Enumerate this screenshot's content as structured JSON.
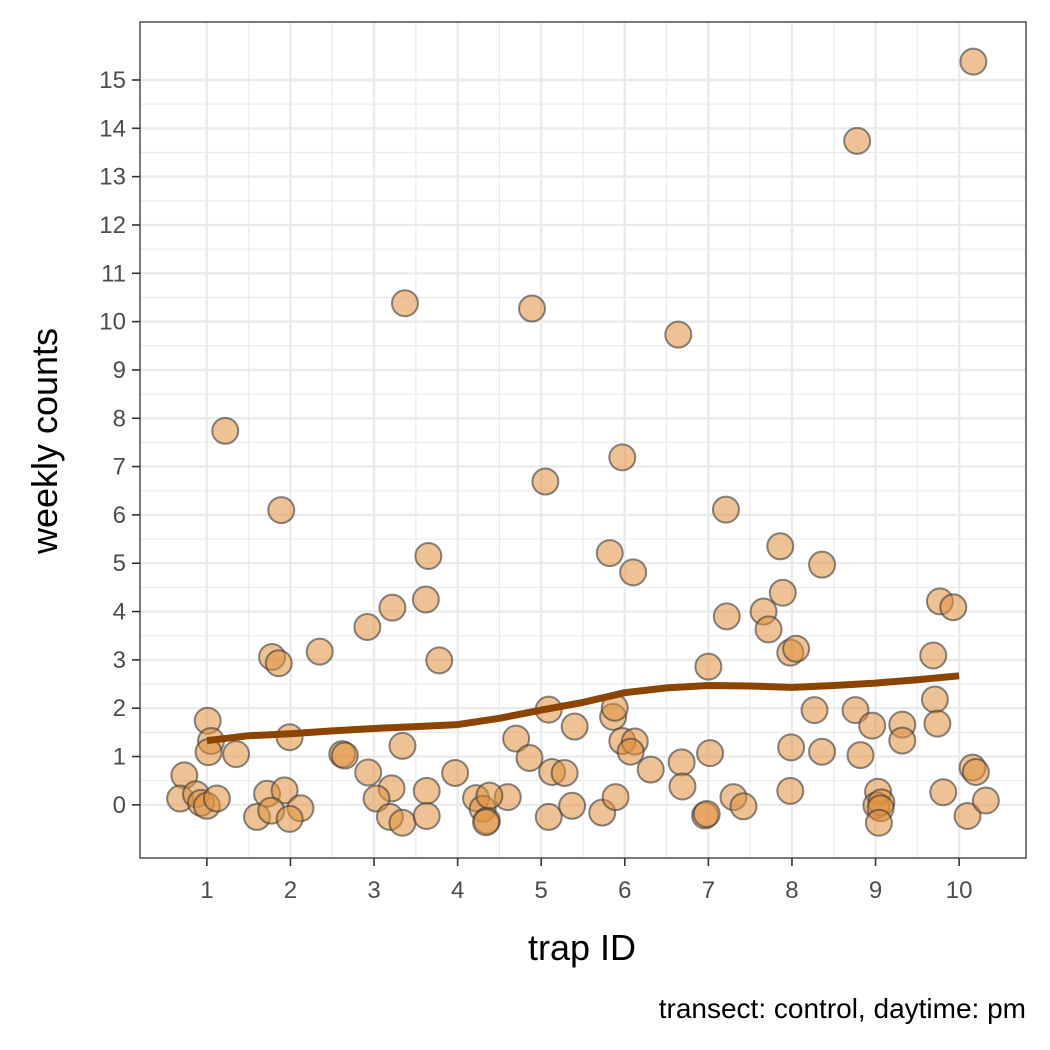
{
  "chart_data": {
    "type": "scatter",
    "xlabel": "trap ID",
    "ylabel": "weekly counts",
    "caption": "transect: control, daytime: pm",
    "xlim": [
      0.2,
      10.8
    ],
    "ylim": [
      -1.1,
      16.2
    ],
    "xticks": [
      1,
      2,
      3,
      4,
      5,
      6,
      7,
      8,
      9,
      10
    ],
    "yticks": [
      0,
      1,
      2,
      3,
      4,
      5,
      6,
      7,
      8,
      9,
      10,
      11,
      12,
      13,
      14,
      15
    ],
    "grid": true,
    "colors": {
      "point_fill": "#e08f3c",
      "point_stroke": "#3a3a3a",
      "trend": "#8b4500",
      "grid": "#ebebeb",
      "panel_border": "#333333"
    },
    "points": [
      [
        1.22,
        7.74
      ],
      [
        1.89,
        6.1
      ],
      [
        1.01,
        1.74
      ],
      [
        1.05,
        1.32
      ],
      [
        1.02,
        1.09
      ],
      [
        1.35,
        1.05
      ],
      [
        0.73,
        0.61
      ],
      [
        0.68,
        0.13
      ],
      [
        0.87,
        0.22
      ],
      [
        0.93,
        0.04
      ],
      [
        1.0,
        -0.02
      ],
      [
        1.12,
        0.13
      ],
      [
        1.78,
        3.06
      ],
      [
        1.86,
        2.93
      ],
      [
        2.35,
        3.17
      ],
      [
        1.99,
        1.4
      ],
      [
        1.72,
        0.23
      ],
      [
        1.93,
        0.3
      ],
      [
        2.12,
        -0.07
      ],
      [
        1.6,
        -0.25
      ],
      [
        1.77,
        -0.12
      ],
      [
        1.99,
        -0.29
      ],
      [
        3.37,
        10.38
      ],
      [
        3.22,
        4.08
      ],
      [
        2.92,
        3.68
      ],
      [
        3.65,
        5.15
      ],
      [
        3.62,
        4.25
      ],
      [
        3.78,
        2.99
      ],
      [
        3.34,
        1.22
      ],
      [
        2.62,
        1.05
      ],
      [
        2.65,
        1.02
      ],
      [
        2.93,
        0.67
      ],
      [
        3.21,
        0.34
      ],
      [
        3.03,
        0.13
      ],
      [
        3.63,
        0.29
      ],
      [
        3.19,
        -0.25
      ],
      [
        3.34,
        -0.37
      ],
      [
        3.63,
        -0.23
      ],
      [
        3.97,
        0.66
      ],
      [
        4.89,
        10.27
      ],
      [
        5.05,
        6.69
      ],
      [
        4.7,
        1.37
      ],
      [
        4.86,
        0.97
      ],
      [
        4.22,
        0.14
      ],
      [
        4.6,
        0.16
      ],
      [
        4.3,
        -0.08
      ],
      [
        4.38,
        0.19
      ],
      [
        4.35,
        -0.33
      ],
      [
        4.34,
        -0.36
      ],
      [
        5.09,
        1.97
      ],
      [
        5.4,
        1.62
      ],
      [
        5.13,
        0.68
      ],
      [
        5.28,
        0.66
      ],
      [
        5.09,
        -0.25
      ],
      [
        5.37,
        -0.02
      ],
      [
        6.64,
        9.73
      ],
      [
        5.97,
        7.19
      ],
      [
        5.82,
        5.21
      ],
      [
        6.1,
        4.81
      ],
      [
        5.86,
        1.82
      ],
      [
        5.88,
        2.01
      ],
      [
        5.97,
        1.32
      ],
      [
        6.12,
        1.31
      ],
      [
        6.07,
        1.1
      ],
      [
        6.31,
        0.73
      ],
      [
        5.73,
        -0.16
      ],
      [
        5.89,
        0.16
      ],
      [
        7.21,
        6.11
      ],
      [
        7.22,
        3.9
      ],
      [
        7.0,
        2.86
      ],
      [
        7.02,
        1.07
      ],
      [
        6.68,
        0.88
      ],
      [
        6.69,
        0.38
      ],
      [
        7.3,
        0.16
      ],
      [
        7.42,
        -0.03
      ],
      [
        6.96,
        -0.22
      ],
      [
        6.98,
        -0.19
      ],
      [
        7.86,
        5.35
      ],
      [
        8.36,
        4.97
      ],
      [
        7.66,
        4.0
      ],
      [
        7.89,
        4.39
      ],
      [
        7.72,
        3.63
      ],
      [
        7.98,
        3.15
      ],
      [
        8.05,
        3.23
      ],
      [
        8.27,
        1.96
      ],
      [
        7.99,
        1.19
      ],
      [
        8.36,
        1.1
      ],
      [
        7.98,
        0.29
      ],
      [
        8.78,
        13.74
      ],
      [
        8.76,
        1.96
      ],
      [
        8.96,
        1.64
      ],
      [
        8.82,
        1.03
      ],
      [
        9.03,
        0.27
      ],
      [
        9.01,
        -0.01
      ],
      [
        9.07,
        0.05
      ],
      [
        9.06,
        -0.07
      ],
      [
        9.04,
        -0.37
      ],
      [
        9.32,
        1.66
      ],
      [
        9.32,
        1.33
      ],
      [
        10.17,
        15.38
      ],
      [
        9.77,
        4.21
      ],
      [
        9.93,
        4.09
      ],
      [
        9.69,
        3.09
      ],
      [
        9.71,
        2.18
      ],
      [
        9.74,
        1.68
      ],
      [
        9.81,
        0.26
      ],
      [
        10.16,
        0.77
      ],
      [
        10.2,
        0.68
      ],
      [
        10.1,
        -0.23
      ],
      [
        10.32,
        0.09
      ]
    ],
    "trend_line": [
      [
        1.0,
        1.33
      ],
      [
        1.5,
        1.43
      ],
      [
        2.0,
        1.47
      ],
      [
        2.5,
        1.53
      ],
      [
        3.0,
        1.58
      ],
      [
        3.5,
        1.62
      ],
      [
        4.0,
        1.66
      ],
      [
        4.5,
        1.79
      ],
      [
        5.0,
        1.96
      ],
      [
        5.5,
        2.12
      ],
      [
        6.0,
        2.32
      ],
      [
        6.5,
        2.42
      ],
      [
        7.0,
        2.47
      ],
      [
        7.5,
        2.46
      ],
      [
        8.0,
        2.43
      ],
      [
        8.5,
        2.47
      ],
      [
        9.0,
        2.52
      ],
      [
        9.5,
        2.59
      ],
      [
        10.0,
        2.67
      ]
    ]
  }
}
